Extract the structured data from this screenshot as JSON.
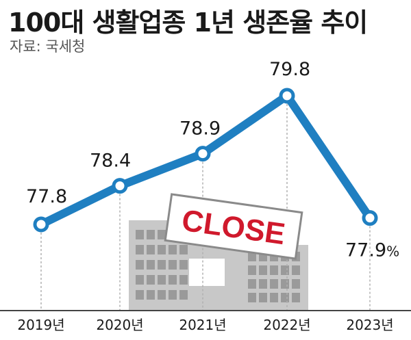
{
  "header": {
    "title": "100대 생활업종 1년 생존율 추이",
    "source": "자료: 국세청"
  },
  "illustration": {
    "sign_text": "CLOSE",
    "sign_color": "#d0192c",
    "building_color": "#c8c8c8"
  },
  "colors": {
    "line": "#1f7fc1",
    "marker_fill": "#ffffff",
    "guide": "#b0b0b0"
  },
  "chart_data": {
    "type": "line",
    "title": "100대 생활업종 1년 생존율 추이",
    "categories": [
      "2019년",
      "2020년",
      "2021년",
      "2022년",
      "2023년"
    ],
    "values": [
      77.8,
      78.4,
      78.9,
      79.8,
      77.9
    ],
    "value_labels": [
      "77.8",
      "78.4",
      "78.9",
      "79.8",
      "77.9"
    ],
    "unit": "%",
    "ylim": [
      77.5,
      80.0
    ],
    "grid": false
  }
}
